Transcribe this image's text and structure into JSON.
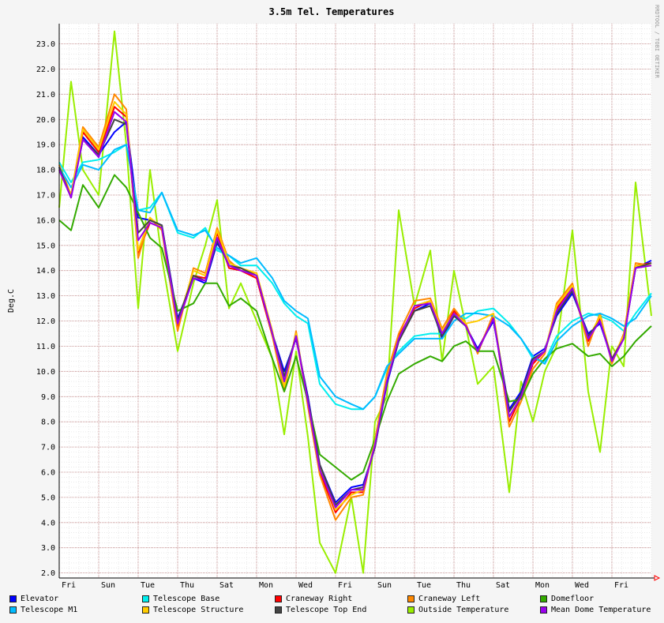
{
  "chart_data": {
    "type": "line",
    "title": "3.5m Tel. Temperatures",
    "ylabel": "Deg.C",
    "watermark": "RRDTOOL / TOBI OETIKER",
    "ylim": [
      1.8,
      23.8
    ],
    "xlim": [
      0,
      15
    ],
    "yticks": [
      "2.0",
      "3.0",
      "4.0",
      "5.0",
      "6.0",
      "7.0",
      "8.0",
      "9.0",
      "10.0",
      "11.0",
      "12.0",
      "13.0",
      "14.0",
      "15.0",
      "16.0",
      "17.0",
      "18.0",
      "19.0",
      "20.0",
      "21.0",
      "22.0",
      "23.0"
    ],
    "xticks": [
      "Fri",
      "Sun",
      "Tue",
      "Thu",
      "Sat",
      "Mon",
      "Wed",
      "Fri",
      "Sun",
      "Tue",
      "Thu",
      "Sat",
      "Mon",
      "Wed",
      "Fri"
    ],
    "x": [
      0,
      0.3,
      0.6,
      1.0,
      1.4,
      1.7,
      2.0,
      2.3,
      2.6,
      3.0,
      3.4,
      3.7,
      4.0,
      4.3,
      4.6,
      5.0,
      5.4,
      5.7,
      6.0,
      6.3,
      6.6,
      7.0,
      7.4,
      7.7,
      8.0,
      8.3,
      8.6,
      9.0,
      9.4,
      9.7,
      10.0,
      10.3,
      10.6,
      11.0,
      11.4,
      11.7,
      12.0,
      12.3,
      12.6,
      13.0,
      13.4,
      13.7,
      14.0,
      14.3,
      14.6,
      15.0
    ],
    "series": [
      {
        "name": "Elevator",
        "color": "#0000ff",
        "values": [
          18.1,
          17.0,
          19.3,
          18.6,
          19.5,
          19.9,
          16.1,
          16.0,
          15.8,
          12.1,
          13.7,
          13.5,
          15.1,
          14.3,
          14.1,
          13.8,
          11.5,
          10.0,
          11.3,
          9.0,
          6.3,
          4.8,
          5.4,
          5.5,
          7.0,
          9.5,
          11.2,
          12.4,
          12.7,
          11.3,
          12.2,
          11.8,
          10.9,
          12.0,
          8.5,
          9.2,
          10.6,
          10.9,
          12.2,
          13.1,
          11.5,
          11.9,
          10.5,
          11.3,
          14.1,
          14.4
        ]
      },
      {
        "name": "Telescope Base",
        "color": "#00eeee",
        "values": [
          18.3,
          17.5,
          18.3,
          18.4,
          18.7,
          19.0,
          16.4,
          16.5,
          17.1,
          15.5,
          15.3,
          15.7,
          14.8,
          14.6,
          14.2,
          14.2,
          13.5,
          12.7,
          12.2,
          11.9,
          9.5,
          8.7,
          8.5,
          8.5,
          9.0,
          10.1,
          10.8,
          11.4,
          11.5,
          11.5,
          12.2,
          12.1,
          12.4,
          12.5,
          11.9,
          11.3,
          10.5,
          10.4,
          11.4,
          12.0,
          12.3,
          12.2,
          12.0,
          11.6,
          12.3,
          13.1
        ]
      },
      {
        "name": "Craneway Right",
        "color": "#ff0000",
        "values": [
          18.0,
          16.9,
          19.5,
          18.7,
          20.5,
          20.1,
          14.7,
          15.9,
          15.7,
          11.8,
          13.8,
          13.7,
          15.5,
          14.1,
          14.0,
          13.7,
          11.4,
          9.6,
          11.4,
          8.7,
          6.0,
          4.4,
          5.2,
          5.2,
          7.2,
          9.8,
          11.4,
          12.5,
          12.8,
          11.5,
          12.4,
          11.8,
          10.8,
          12.2,
          8.0,
          9.0,
          10.3,
          10.8,
          12.5,
          13.3,
          11.2,
          12.1,
          10.4,
          11.3,
          14.2,
          14.3
        ]
      },
      {
        "name": "Craneway Left",
        "color": "#ff8800",
        "values": [
          18.2,
          17.0,
          19.7,
          18.9,
          21.0,
          20.4,
          14.5,
          16.1,
          15.6,
          11.6,
          14.1,
          13.9,
          15.7,
          14.4,
          14.0,
          13.9,
          11.4,
          9.2,
          11.6,
          8.6,
          5.9,
          4.1,
          5.0,
          5.1,
          7.3,
          9.9,
          11.5,
          12.8,
          12.9,
          11.7,
          12.5,
          11.9,
          10.7,
          12.3,
          7.8,
          8.8,
          10.1,
          10.7,
          12.7,
          13.5,
          11.0,
          12.3,
          10.3,
          11.5,
          14.3,
          14.2
        ]
      },
      {
        "name": "Domefloor",
        "color": "#33aa00",
        "values": [
          16.0,
          15.6,
          17.4,
          16.5,
          17.8,
          17.3,
          16.3,
          15.3,
          14.9,
          12.4,
          12.7,
          13.5,
          13.5,
          12.6,
          12.9,
          12.4,
          10.5,
          9.2,
          10.6,
          8.8,
          6.7,
          6.2,
          5.7,
          6.0,
          7.3,
          8.8,
          9.9,
          10.3,
          10.6,
          10.4,
          11.0,
          11.2,
          10.8,
          10.8,
          8.8,
          8.9,
          9.9,
          10.5,
          10.9,
          11.1,
          10.6,
          10.7,
          10.2,
          10.6,
          11.2,
          11.8
        ]
      },
      {
        "name": "Telescope M1",
        "color": "#00bbff",
        "values": [
          18.1,
          17.3,
          18.2,
          18.0,
          18.8,
          19.0,
          16.4,
          16.3,
          17.1,
          15.6,
          15.4,
          15.6,
          14.9,
          14.6,
          14.3,
          14.5,
          13.7,
          12.8,
          12.4,
          12.1,
          9.8,
          9.0,
          8.7,
          8.5,
          9.0,
          10.2,
          10.7,
          11.3,
          11.3,
          11.3,
          12.0,
          12.3,
          12.3,
          12.2,
          11.8,
          11.3,
          10.6,
          10.3,
          11.2,
          11.8,
          12.2,
          12.3,
          12.1,
          11.8,
          12.1,
          13.0
        ]
      },
      {
        "name": "Telescope Structure",
        "color": "#ffcc00",
        "values": [
          18.0,
          17.0,
          19.6,
          18.8,
          20.7,
          20.2,
          14.8,
          16.1,
          15.7,
          11.9,
          14.0,
          13.8,
          15.6,
          14.3,
          14.1,
          13.9,
          11.6,
          9.4,
          11.5,
          8.8,
          6.2,
          4.5,
          5.1,
          5.3,
          7.2,
          9.7,
          11.3,
          12.6,
          12.8,
          11.6,
          12.3,
          11.9,
          12.0,
          12.3,
          8.2,
          9.0,
          10.4,
          10.8,
          12.6,
          13.4,
          11.3,
          12.2,
          10.5,
          11.4,
          14.2,
          14.2
        ]
      },
      {
        "name": "Telescope Top End",
        "color": "#444444",
        "values": [
          18.1,
          16.9,
          19.2,
          18.6,
          20.0,
          19.8,
          15.5,
          16.0,
          15.8,
          12.0,
          13.8,
          13.6,
          15.2,
          14.2,
          14.1,
          13.8,
          11.5,
          9.8,
          11.4,
          8.9,
          6.3,
          4.7,
          5.3,
          5.4,
          7.0,
          9.6,
          11.2,
          12.4,
          12.6,
          11.4,
          12.2,
          11.8,
          10.8,
          12.1,
          8.4,
          9.1,
          10.5,
          10.8,
          12.3,
          13.2,
          11.4,
          12.0,
          10.5,
          11.3,
          14.1,
          14.3
        ]
      },
      {
        "name": "Outside Temperature",
        "color": "#99ee00",
        "values": [
          16.5,
          21.5,
          18.0,
          17.0,
          23.5,
          19.0,
          12.5,
          18.0,
          14.5,
          10.8,
          13.5,
          15.0,
          16.8,
          12.5,
          13.5,
          12.0,
          10.5,
          7.5,
          10.8,
          7.4,
          3.2,
          2.0,
          5.0,
          2.0,
          8.0,
          9.0,
          16.4,
          12.6,
          14.8,
          10.4,
          14.0,
          11.8,
          9.5,
          10.2,
          5.2,
          9.6,
          8.0,
          10.0,
          11.0,
          15.6,
          9.2,
          6.8,
          11.0,
          10.2,
          17.5,
          12.2
        ]
      },
      {
        "name": "Mean Dome Temperature",
        "color": "#9900ee",
        "values": [
          18.0,
          16.9,
          19.2,
          18.5,
          20.3,
          19.9,
          15.2,
          15.9,
          15.7,
          11.9,
          13.7,
          13.6,
          15.3,
          14.2,
          14.0,
          13.8,
          11.5,
          9.6,
          11.4,
          8.8,
          6.1,
          4.6,
          5.3,
          5.3,
          7.1,
          9.6,
          11.3,
          12.6,
          12.7,
          11.5,
          12.3,
          11.8,
          10.8,
          12.1,
          8.2,
          9.0,
          10.4,
          10.8,
          12.4,
          13.3,
          11.3,
          12.0,
          10.4,
          11.3,
          14.1,
          14.2
        ]
      }
    ]
  }
}
